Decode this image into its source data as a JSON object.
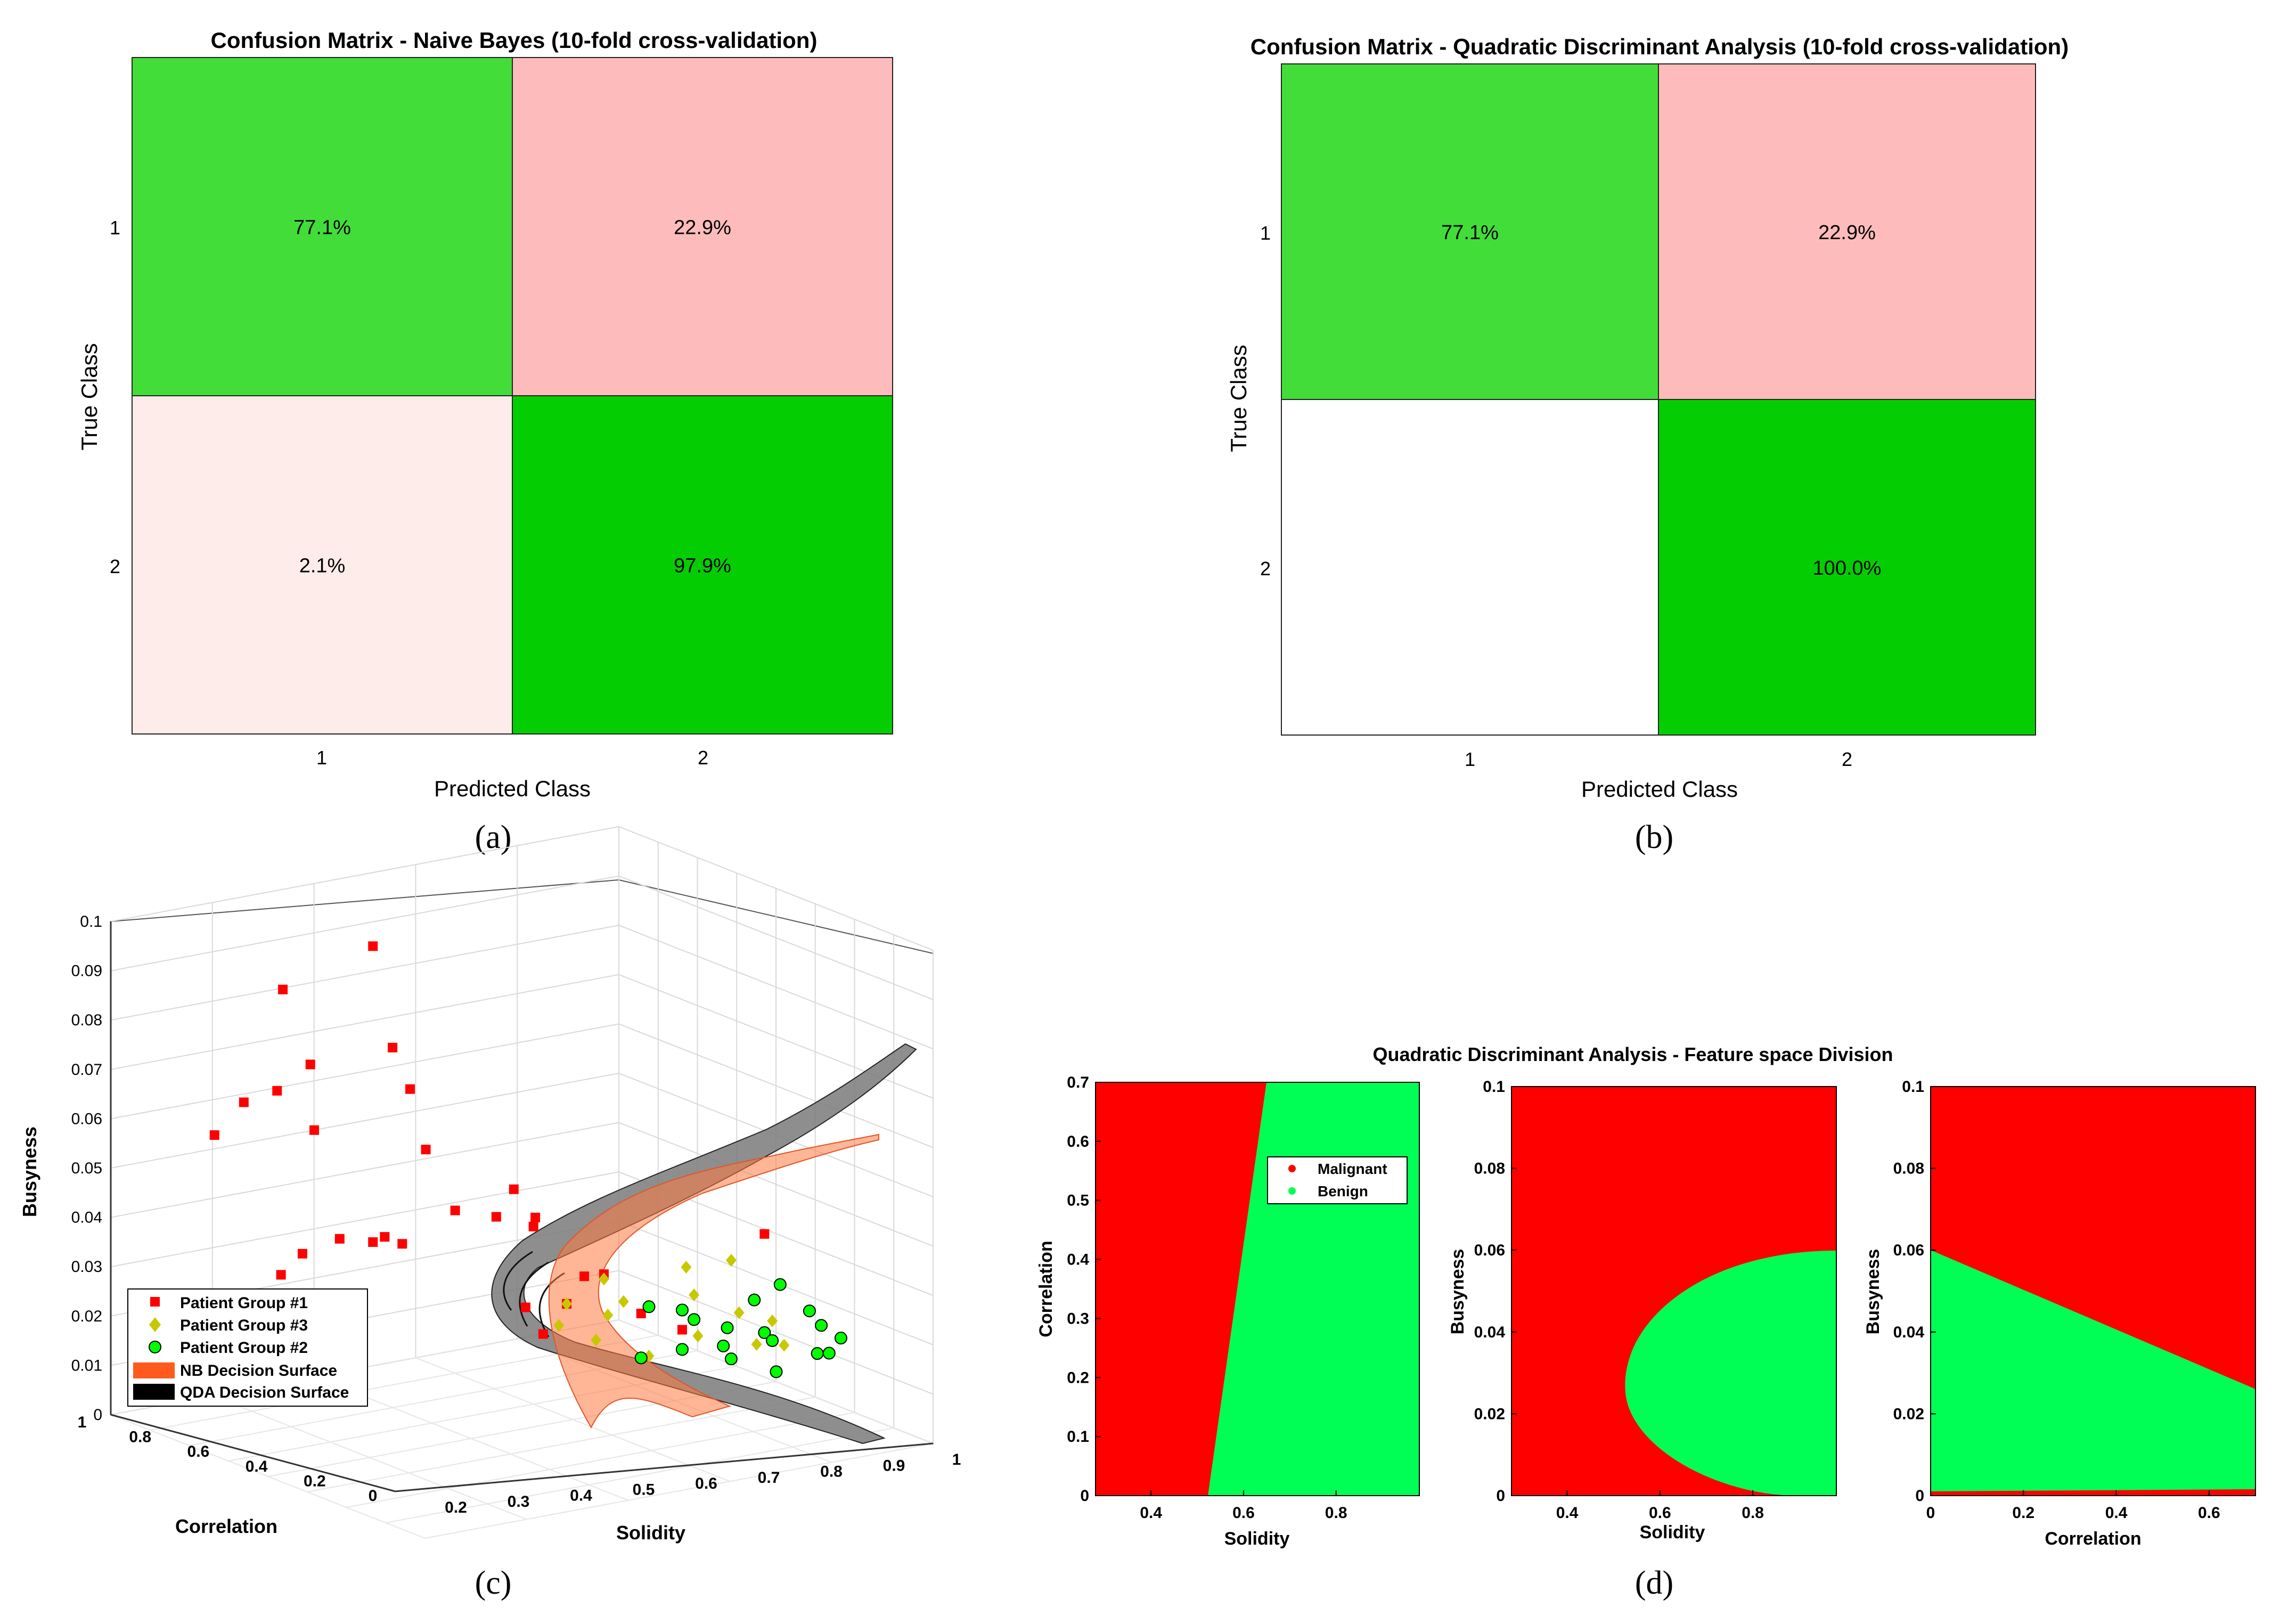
{
  "panels": {
    "a": "(a)",
    "b": "(b)",
    "c": "(c)",
    "d": "(d)"
  },
  "chart_data": [
    {
      "id": "a",
      "type": "heatmap",
      "title": "Confusion Matrix - Naive Bayes (10-fold cross-validation)",
      "xlabel": "Predicted Class",
      "ylabel": "True Class",
      "x_ticks": [
        "1",
        "2"
      ],
      "y_ticks": [
        "1",
        "2"
      ],
      "cells": [
        {
          "true": "1",
          "pred": "1",
          "value": 77.1,
          "label": "77.1%",
          "color": "#42dd39"
        },
        {
          "true": "1",
          "pred": "2",
          "value": 22.9,
          "label": "22.9%",
          "color": "#fdbcbb"
        },
        {
          "true": "2",
          "pred": "1",
          "value": 2.1,
          "label": "2.1%",
          "color": "#fdecea"
        },
        {
          "true": "2",
          "pred": "2",
          "value": 97.9,
          "label": "97.9%",
          "color": "#04ce02"
        }
      ]
    },
    {
      "id": "b",
      "type": "heatmap",
      "title": "Confusion Matrix - Quadratic Discriminant Analysis (10-fold cross-validation)",
      "xlabel": "Predicted Class",
      "ylabel": "True Class",
      "x_ticks": [
        "1",
        "2"
      ],
      "y_ticks": [
        "1",
        "2"
      ],
      "cells": [
        {
          "true": "1",
          "pred": "1",
          "value": 77.1,
          "label": "77.1%",
          "color": "#42dd39"
        },
        {
          "true": "1",
          "pred": "2",
          "value": 22.9,
          "label": "22.9%",
          "color": "#fdbcbb"
        },
        {
          "true": "2",
          "pred": "1",
          "value": 0,
          "label": "",
          "color": "#ffffff"
        },
        {
          "true": "2",
          "pred": "2",
          "value": 100.0,
          "label": "100.0%",
          "color": "#04ce02"
        }
      ]
    },
    {
      "id": "c",
      "type": "scatter",
      "xlabel": "Solidity",
      "ylabel": "Correlation",
      "zlabel": "Busyness",
      "xlim": [
        0.2,
        1
      ],
      "ylim": [
        0,
        1
      ],
      "zlim": [
        0,
        0.1
      ],
      "x_ticks": [
        "0.2",
        "0.3",
        "0.4",
        "0.5",
        "0.6",
        "0.7",
        "0.8",
        "0.9",
        "1"
      ],
      "y_ticks": [
        "0",
        "0.2",
        "0.4",
        "0.6",
        "0.8",
        "1"
      ],
      "z_ticks": [
        "0",
        "0.01",
        "0.02",
        "0.03",
        "0.04",
        "0.05",
        "0.06",
        "0.07",
        "0.08",
        "0.09",
        "0.1"
      ],
      "legend": [
        {
          "label": "Patient Group #1",
          "marker": "square",
          "color": "#ff0000"
        },
        {
          "label": "Patient Group #3",
          "marker": "diamond",
          "color": "#c8c800"
        },
        {
          "label": "Patient Group #2",
          "marker": "circle",
          "color": "#00ff00"
        },
        {
          "label": "NB Decision Surface",
          "marker": "patch",
          "color": "#ff5a1e"
        },
        {
          "label": "QDA Decision Surface",
          "marker": "patch",
          "color": "#000000"
        }
      ],
      "series": [
        {
          "name": "Patient Group #1",
          "points": [
            [
              0.25,
              0.7,
              0.082
            ],
            [
              0.35,
              0.6,
              0.092
            ],
            [
              0.28,
              0.8,
              0.062
            ],
            [
              0.3,
              0.75,
              0.064
            ],
            [
              0.32,
              0.7,
              0.069
            ],
            [
              0.4,
              0.6,
              0.073
            ],
            [
              0.38,
              0.55,
              0.063
            ],
            [
              0.27,
              0.85,
              0.056
            ],
            [
              0.33,
              0.7,
              0.056
            ],
            [
              0.42,
              0.55,
              0.052
            ],
            [
              0.45,
              0.4,
              0.042
            ],
            [
              0.43,
              0.5,
              0.039
            ],
            [
              0.47,
              0.45,
              0.038
            ],
            [
              0.44,
              0.35,
              0.035
            ],
            [
              0.5,
              0.4,
              0.036
            ],
            [
              0.38,
              0.6,
              0.034
            ],
            [
              0.36,
              0.55,
              0.031
            ],
            [
              0.33,
              0.65,
              0.033
            ],
            [
              0.35,
              0.6,
              0.032
            ],
            [
              0.3,
              0.7,
              0.03
            ],
            [
              0.31,
              0.75,
              0.027
            ],
            [
              0.55,
              0.3,
              0.026
            ],
            [
              0.5,
              0.3,
              0.024
            ],
            [
              0.52,
              0.35,
              0.02
            ],
            [
              0.48,
              0.4,
              0.019
            ],
            [
              0.58,
              0.25,
              0.018
            ],
            [
              0.7,
              0.1,
              0.035
            ],
            [
              0.46,
              0.35,
              0.012
            ],
            [
              0.62,
              0.2,
              0.015
            ]
          ]
        },
        {
          "name": "Patient Group #3",
          "points": [
            [
              0.55,
              0.3,
              0.025
            ],
            [
              0.6,
              0.3,
              0.022
            ],
            [
              0.65,
              0.2,
              0.023
            ],
            [
              0.7,
              0.15,
              0.02
            ],
            [
              0.72,
              0.1,
              0.018
            ],
            [
              0.66,
              0.2,
              0.015
            ],
            [
              0.6,
              0.25,
              0.01
            ],
            [
              0.68,
              0.1,
              0.012
            ],
            [
              0.75,
              0.1,
              0.014
            ],
            [
              0.52,
              0.35,
              0.02
            ],
            [
              0.56,
              0.3,
              0.018
            ],
            [
              0.63,
              0.2,
              0.028
            ],
            [
              0.68,
              0.15,
              0.03
            ],
            [
              0.5,
              0.35,
              0.015
            ],
            [
              0.53,
              0.3,
              0.012
            ]
          ]
        },
        {
          "name": "Patient Group #2",
          "points": [
            [
              0.6,
              0.25,
              0.02
            ],
            [
              0.62,
              0.2,
              0.019
            ],
            [
              0.65,
              0.2,
              0.018
            ],
            [
              0.67,
              0.15,
              0.016
            ],
            [
              0.7,
              0.1,
              0.015
            ],
            [
              0.72,
              0.1,
              0.014
            ],
            [
              0.75,
              0.05,
              0.02
            ],
            [
              0.78,
              0.05,
              0.018
            ],
            [
              0.8,
              0.05,
              0.013
            ],
            [
              0.66,
              0.15,
              0.012
            ],
            [
              0.68,
              0.15,
              0.01
            ],
            [
              0.73,
              0.1,
              0.008
            ],
            [
              0.62,
              0.2,
              0.011
            ],
            [
              0.58,
              0.25,
              0.009
            ],
            [
              0.7,
              0.12,
              0.022
            ],
            [
              0.77,
              0.05,
              0.012
            ],
            [
              0.83,
              0.05,
              0.017
            ],
            [
              0.74,
              0.1,
              0.026
            ]
          ]
        }
      ]
    },
    {
      "id": "d",
      "type": "heatmap",
      "title": "Quadratic Discriminant Analysis - Feature space Division",
      "legend": [
        {
          "label": "Malignant",
          "color": "#ff0000"
        },
        {
          "label": "Benign",
          "color": "#00ff55"
        }
      ],
      "subplots": [
        {
          "xlabel": "Solidity",
          "ylabel": "Correlation",
          "xlim": [
            0.28,
            0.98
          ],
          "ylim": [
            0,
            0.7
          ],
          "x_ticks": [
            "0.4",
            "0.6",
            "0.8"
          ],
          "y_ticks": [
            "0",
            "0.1",
            "0.2",
            "0.3",
            "0.4",
            "0.5",
            "0.6",
            "0.7"
          ],
          "boundary": {
            "kind": "line",
            "from": [
              0.53,
              0
            ],
            "to": [
              0.65,
              0.7
            ],
            "benign_side": "right"
          }
        },
        {
          "xlabel": "Solidity",
          "ylabel": "Busyness",
          "xlim": [
            0.28,
            0.98
          ],
          "ylim": [
            0,
            0.1
          ],
          "x_ticks": [
            "0.4",
            "0.6",
            "0.8"
          ],
          "y_ticks": [
            "0",
            "0.02",
            "0.04",
            "0.06",
            "0.08",
            "0.1"
          ],
          "boundary": {
            "kind": "ellipse",
            "vertex": [
              0.54,
              0.025
            ],
            "upper": [
              0.98,
              0.06
            ],
            "lower": [
              0.93,
              0.0
            ],
            "benign_side": "inside"
          }
        },
        {
          "xlabel": "Correlation",
          "ylabel": "Busyness",
          "xlim": [
            0,
            0.7
          ],
          "ylim": [
            0,
            0.1
          ],
          "x_ticks": [
            "0",
            "0.2",
            "0.4",
            "0.6"
          ],
          "y_ticks": [
            "0",
            "0.02",
            "0.04",
            "0.06",
            "0.08",
            "0.1"
          ],
          "boundary": {
            "kind": "line",
            "from": [
              0,
              0.06
            ],
            "to": [
              0.7,
              0.026
            ],
            "benign_side": "below"
          }
        }
      ]
    }
  ]
}
